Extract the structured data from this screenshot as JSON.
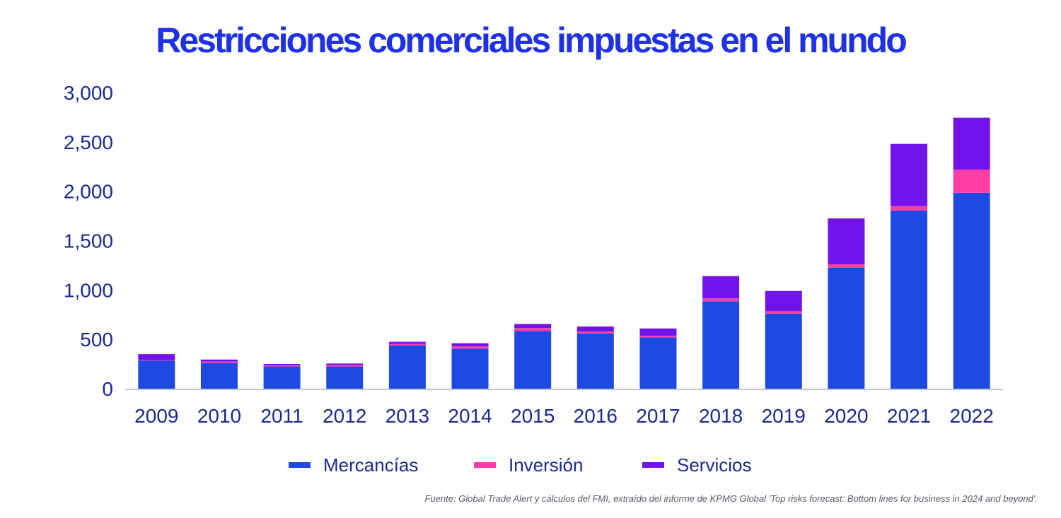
{
  "title": "Restricciones comerciales impuestas en el mundo",
  "source": "Fuente: Global Trade Alert y cálculos del FMI, extraído del informe de KPMG Global 'Top risks forecast: Bottom lines for business in 2024 and beyond'.",
  "legend": [
    {
      "name": "Mercancías",
      "color": "#1E49E2"
    },
    {
      "name": "Inversión",
      "color": "#FF3EA5"
    },
    {
      "name": "Servicios",
      "color": "#7213EA"
    }
  ],
  "chart_data": {
    "type": "bar",
    "stacked": true,
    "title": "Restricciones comerciales impuestas en el mundo",
    "xlabel": "",
    "ylabel": "",
    "ylim": [
      0,
      3000
    ],
    "yticks": [
      0,
      500,
      1000,
      1500,
      2000,
      2500,
      3000
    ],
    "ytick_labels": [
      "0",
      "500",
      "1,000",
      "1,500",
      "2,000",
      "2,500",
      "3,000"
    ],
    "categories": [
      "2009",
      "2010",
      "2011",
      "2012",
      "2013",
      "2014",
      "2015",
      "2016",
      "2017",
      "2018",
      "2019",
      "2020",
      "2021",
      "2022"
    ],
    "series": [
      {
        "name": "Mercancías",
        "color": "#1E49E2",
        "values": [
          285,
          260,
          225,
          225,
          440,
          405,
          585,
          560,
          520,
          885,
          760,
          1225,
          1805,
          1985
        ]
      },
      {
        "name": "Inversión",
        "color": "#FF3EA5",
        "values": [
          5,
          15,
          10,
          15,
          15,
          25,
          30,
          20,
          15,
          30,
          25,
          35,
          45,
          235
        ]
      },
      {
        "name": "Servicios",
        "color": "#7213EA",
        "values": [
          60,
          20,
          15,
          15,
          20,
          30,
          40,
          50,
          75,
          225,
          205,
          465,
          630,
          525
        ]
      }
    ],
    "grid": false,
    "legend_position": "bottom"
  }
}
